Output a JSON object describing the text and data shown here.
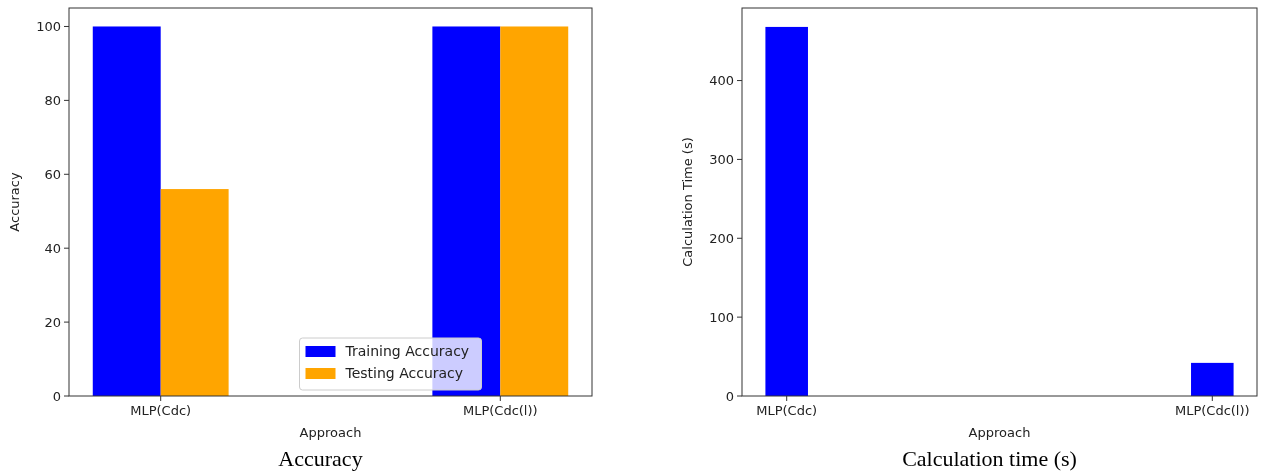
{
  "chart_data": [
    {
      "type": "bar",
      "title": "Accuracy",
      "xlabel": "Approach",
      "ylabel": "Accuracy",
      "categories": [
        "MLP(Cdc)",
        "MLP(Cdc(l))"
      ],
      "series": [
        {
          "name": "Training Accuracy",
          "color": "#0000ff",
          "values": [
            100,
            100
          ]
        },
        {
          "name": "Testing Accuracy",
          "color": "#ffa500",
          "values": [
            56,
            100
          ]
        }
      ],
      "ylim": [
        0,
        105
      ],
      "yticks": [
        0,
        20,
        40,
        60,
        80,
        100
      ],
      "grid": false,
      "legend": "bottom"
    },
    {
      "type": "bar",
      "title": "Calculation time (s)",
      "xlabel": "Approach",
      "ylabel": "Calculation Time (s)",
      "categories": [
        "MLP(Cdc)",
        "MLP(Cdc(l))"
      ],
      "series": [
        {
          "color": "#0000ff",
          "values": [
            468,
            42
          ]
        }
      ],
      "ylim": [
        0,
        492
      ],
      "yticks": [
        0,
        100,
        200,
        300,
        400
      ],
      "grid": false,
      "legend": false
    }
  ]
}
